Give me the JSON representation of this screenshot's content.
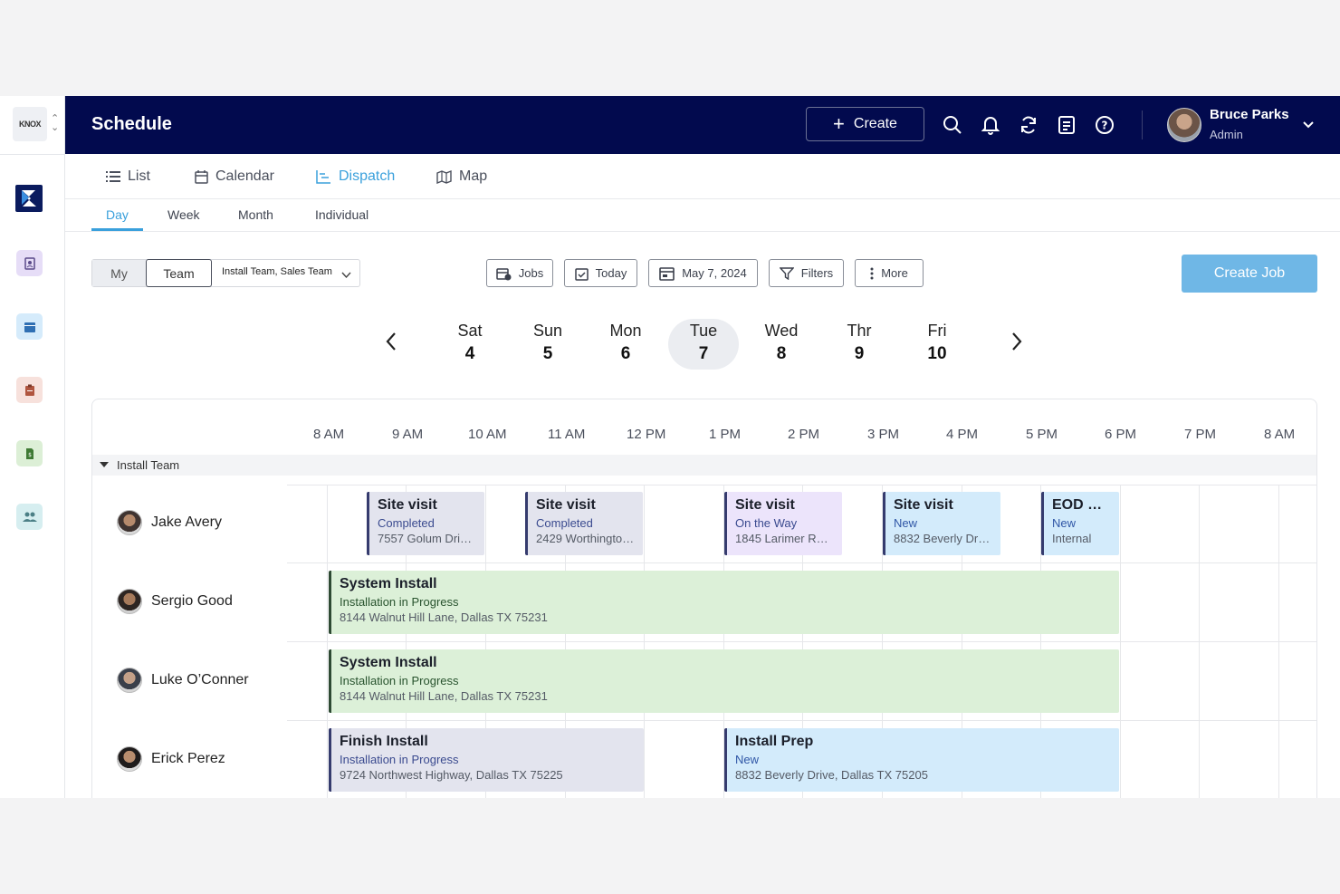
{
  "sidebar": {
    "logo_text": "KNOX",
    "items": [
      {
        "icon": "contacts-icon",
        "color": "#e6ddf7"
      },
      {
        "icon": "calendar-icon",
        "color": "#d5ebfb"
      },
      {
        "icon": "clipboard-icon",
        "color": "#f7e1dc"
      },
      {
        "icon": "invoice-icon",
        "color": "#dcefd6"
      },
      {
        "icon": "team-icon",
        "color": "#d6eef0"
      }
    ]
  },
  "header": {
    "title": "Schedule",
    "create_label": "Create",
    "user": {
      "name": "Bruce Parks",
      "role": "Admin"
    }
  },
  "view_tabs": [
    {
      "label": "List",
      "icon": "list-icon"
    },
    {
      "label": "Calendar",
      "icon": "calendar-icon"
    },
    {
      "label": "Dispatch",
      "icon": "dispatch-icon",
      "active": true
    },
    {
      "label": "Map",
      "icon": "map-icon"
    }
  ],
  "sub_tabs": [
    {
      "label": "Day",
      "active": true
    },
    {
      "label": "Week"
    },
    {
      "label": "Month"
    },
    {
      "label": "Individual"
    }
  ],
  "toolbar": {
    "scope_my": "My",
    "scope_team": "Team",
    "team_select": "Install Team, Sales Team",
    "jobs": "Jobs",
    "today": "Today",
    "date": "May 7, 2024",
    "filters": "Filters",
    "more": "More",
    "create_job": "Create Job"
  },
  "days": [
    {
      "name": "Sat",
      "num": "4"
    },
    {
      "name": "Sun",
      "num": "5"
    },
    {
      "name": "Mon",
      "num": "6"
    },
    {
      "name": "Tue",
      "num": "7",
      "active": true
    },
    {
      "name": "Wed",
      "num": "8"
    },
    {
      "name": "Thr",
      "num": "9"
    },
    {
      "name": "Fri",
      "num": "10"
    }
  ],
  "hours": [
    "8  AM",
    "9  AM",
    "10  AM",
    "11  AM",
    "12  PM",
    "1  PM",
    "2  PM",
    "3  PM",
    "4  PM",
    "5  PM",
    "6  PM",
    "7  PM",
    "8  AM"
  ],
  "group": {
    "label": "Install Team"
  },
  "people": [
    {
      "name": "Jake Avery"
    },
    {
      "name": "Sergio Good"
    },
    {
      "name": "Luke O’Conner"
    },
    {
      "name": "Erick Perez"
    }
  ],
  "events": [
    {
      "title": "Site visit",
      "status": "Completed",
      "address": "7557 Golum Dri…"
    },
    {
      "title": "Site visit",
      "status": "Completed",
      "address": "2429 Worthingto…"
    },
    {
      "title": "Site visit",
      "status": "On the Way",
      "address": "1845 Larimer Ro…"
    },
    {
      "title": "Site visit",
      "status": "New",
      "address": "8832 Beverly Dri…"
    },
    {
      "title": "EOD R…",
      "status": "New",
      "address": "Internal"
    },
    {
      "title": "System Install",
      "status": "Installation in Progress",
      "address": "8144 Walnut Hill Lane, Dallas TX 75231"
    },
    {
      "title": "System Install",
      "status": "Installation in Progress",
      "address": "8144 Walnut Hill Lane, Dallas TX 75231"
    },
    {
      "title": "Finish Install",
      "status": "Installation in Progress",
      "address": "9724 Northwest Highway, Dallas TX 75225"
    },
    {
      "title": "Install Prep",
      "status": "New",
      "address": "8832 Beverly Drive, Dallas TX 75205"
    }
  ]
}
